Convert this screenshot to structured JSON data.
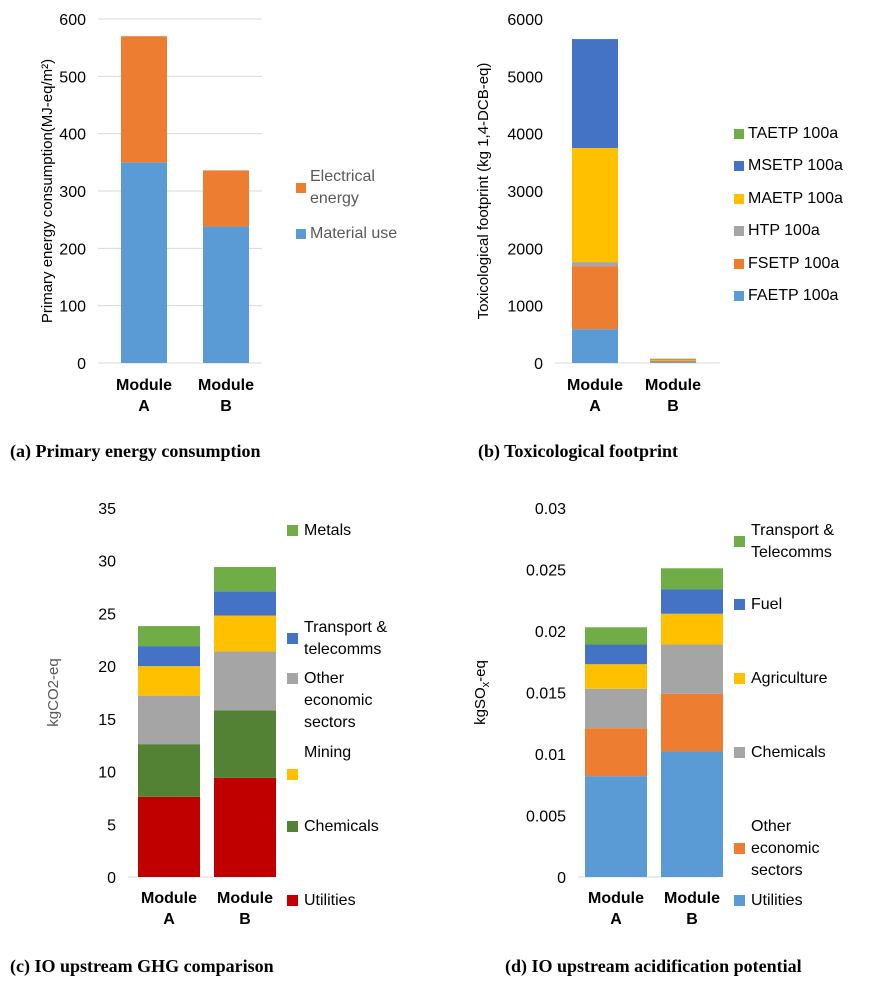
{
  "chart_data": [
    {
      "id": "a",
      "type": "bar",
      "stacked": true,
      "caption": "(a) Primary energy consumption",
      "ylabel": "Primary energy consumption(MJ-eq/m²)",
      "ylim": [
        0,
        600
      ],
      "yticks": [
        "0",
        "100",
        "200",
        "300",
        "400",
        "500",
        "600"
      ],
      "categories": [
        [
          "Module",
          "A"
        ],
        [
          "Module",
          "B"
        ]
      ],
      "grid": true,
      "legend_position": "right",
      "series": [
        {
          "name": "Material use",
          "color": "#5b9bd5",
          "values": [
            350,
            238
          ]
        },
        {
          "name": "Electrical energy",
          "color": "#ed7d31",
          "values": [
            220,
            98
          ]
        }
      ]
    },
    {
      "id": "b",
      "type": "bar",
      "stacked": true,
      "caption": "(b) Toxicological footprint",
      "ylabel": "Toxicological footprint (kg 1,4-DCB-eq)",
      "ylim": [
        0,
        6000
      ],
      "yticks": [
        "0",
        "1000",
        "2000",
        "3000",
        "4000",
        "5000",
        "6000"
      ],
      "categories": [
        [
          "Module",
          "A"
        ],
        [
          "Module",
          "B"
        ]
      ],
      "grid": false,
      "legend_position": "right",
      "series": [
        {
          "name": "FAETP 100a",
          "color": "#5b9bd5",
          "values": [
            590,
            15
          ]
        },
        {
          "name": "FSETP 100a",
          "color": "#ed7d31",
          "values": [
            1100,
            20
          ]
        },
        {
          "name": "HTP 100a",
          "color": "#a5a5a5",
          "values": [
            70,
            10
          ]
        },
        {
          "name": "MAETP 100a",
          "color": "#ffc000",
          "values": [
            1990,
            20
          ]
        },
        {
          "name": "MSETP 100a",
          "color": "#4472c4",
          "values": [
            1900,
            5
          ]
        },
        {
          "name": "TAETP 100a",
          "color": "#70ad47",
          "values": [
            0,
            5
          ]
        }
      ]
    },
    {
      "id": "c",
      "type": "bar",
      "stacked": true,
      "caption": "(c) IO upstream GHG comparison",
      "ylabel": "kgCO2-eq",
      "ylim": [
        0,
        35
      ],
      "yticks": [
        "0",
        "5",
        "10",
        "15",
        "20",
        "25",
        "30",
        "35"
      ],
      "categories": [
        [
          "Module",
          "A"
        ],
        [
          "Module",
          "B"
        ]
      ],
      "grid": false,
      "legend_position": "right",
      "series": [
        {
          "name": "Utilities",
          "color": "#c00000",
          "values": [
            7.6,
            9.4
          ]
        },
        {
          "name": "Chemicals",
          "color": "#548235",
          "values": [
            5.0,
            6.4
          ]
        },
        {
          "name": "Other economic sectors",
          "color": "#a5a5a5",
          "values": [
            4.6,
            5.6
          ]
        },
        {
          "name": "Mining",
          "color": "#ffc000",
          "values": [
            2.8,
            3.4
          ]
        },
        {
          "name": "Transport & telecomms",
          "color": "#4472c4",
          "values": [
            1.9,
            2.3
          ]
        },
        {
          "name": "Metals",
          "color": "#70ad47",
          "values": [
            1.9,
            2.3
          ]
        }
      ]
    },
    {
      "id": "d",
      "type": "bar",
      "stacked": true,
      "caption": "(d) IO upstream acidification potential",
      "ylabel": "kgSOx-eq",
      "ylim": [
        0,
        0.03
      ],
      "yticks": [
        "0",
        "0.005",
        "0.01",
        "0.015",
        "0.02",
        "0.025",
        "0.03"
      ],
      "categories": [
        [
          "Module",
          "A"
        ],
        [
          "Module",
          "B"
        ]
      ],
      "grid": false,
      "legend_position": "right",
      "series": [
        {
          "name": "Utilities",
          "color": "#5b9bd5",
          "values": [
            0.0082,
            0.0102
          ]
        },
        {
          "name": "Other economic sectors",
          "color": "#ed7d31",
          "values": [
            0.0039,
            0.0047
          ]
        },
        {
          "name": "Chemicals",
          "color": "#a5a5a5",
          "values": [
            0.0032,
            0.004
          ]
        },
        {
          "name": "Agriculture",
          "color": "#ffc000",
          "values": [
            0.002,
            0.0025
          ]
        },
        {
          "name": "Fuel",
          "color": "#4472c4",
          "values": [
            0.0016,
            0.002
          ]
        },
        {
          "name": "Transport & Telecomms",
          "color": "#70ad47",
          "values": [
            0.0014,
            0.0017
          ]
        }
      ]
    }
  ]
}
